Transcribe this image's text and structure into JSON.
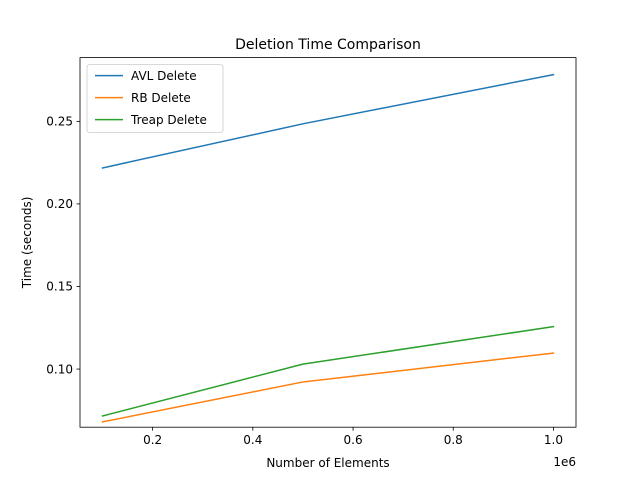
{
  "chart_data": {
    "type": "line",
    "title": "Deletion Time Comparison",
    "xlabel": "Number of Elements",
    "ylabel": "Time (seconds)",
    "x_offset_label": "1e6",
    "x": [
      100000,
      500000,
      1000000
    ],
    "xlim": [
      55000,
      1045000
    ],
    "ylim": [
      0.0648,
      0.2886
    ],
    "xticks": [
      200000,
      400000,
      600000,
      800000,
      1000000
    ],
    "xtick_labels": [
      "0.2",
      "0.4",
      "0.6",
      "0.8",
      "1.0"
    ],
    "yticks": [
      0.1,
      0.15,
      0.2,
      0.25
    ],
    "ytick_labels": [
      "0.10",
      "0.15",
      "0.20",
      "0.25"
    ],
    "grid": false,
    "legend_position": "top-left",
    "series": [
      {
        "name": "AVL Delete",
        "color": "#1f77b4",
        "values": [
          0.2218,
          0.2485,
          0.2783
        ]
      },
      {
        "name": "RB Delete",
        "color": "#ff7f0e",
        "values": [
          0.068,
          0.0922,
          0.1097
        ]
      },
      {
        "name": "Treap Delete",
        "color": "#2ca02c",
        "values": [
          0.0716,
          0.103,
          0.1257
        ]
      }
    ]
  }
}
